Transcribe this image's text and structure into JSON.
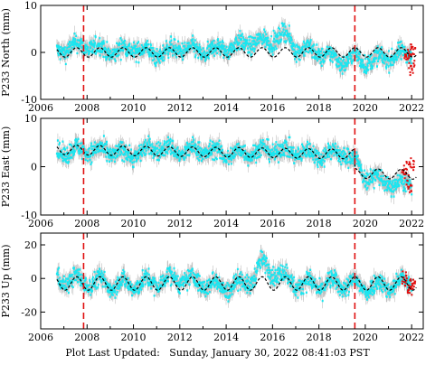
{
  "footer": {
    "label": "Plot Last Updated:",
    "timestamp": "Sunday, January 30, 2022 08:41:03 PST"
  },
  "colors": {
    "data_points": "#19e6f0",
    "error_bars": "#a9a9a9",
    "model_line": "#000000",
    "recent_points": "#e01010",
    "event_lines": "#e01010"
  },
  "chart_data": [
    {
      "type": "scatter",
      "ylabel": "P233 North (mm)",
      "xlim": [
        2006,
        2022.5
      ],
      "ylim": [
        -10,
        10
      ],
      "yticks": [
        -10,
        0,
        10
      ],
      "xticks": [
        2006,
        2008,
        2010,
        2012,
        2014,
        2016,
        2018,
        2020,
        2022
      ],
      "show_xtick_labels": true,
      "event_lines": [
        2007.85,
        2019.55
      ],
      "series": [
        {
          "role": "observations",
          "x": [
            2006.7,
            2007.2,
            2008.0,
            2009.0,
            2010.0,
            2011.0,
            2012.0,
            2013.0,
            2014.0,
            2015.0,
            2016.0,
            2016.5,
            2017.0,
            2018.0,
            2019.0,
            2019.5,
            2020.0,
            2021.0,
            2022.0
          ],
          "y": [
            0.0,
            1.0,
            1.5,
            0.0,
            1.0,
            -0.5,
            1.0,
            0.0,
            1.0,
            2.0,
            2.5,
            4.0,
            1.0,
            0.0,
            -2.0,
            -1.0,
            -2.0,
            -1.0,
            0.0
          ]
        },
        {
          "role": "model",
          "amplitude": 1.0,
          "offset": 0.0,
          "trend": 0.0,
          "steps": []
        },
        {
          "role": "recent",
          "x": [
            2021.8,
            2022.0,
            2022.05
          ],
          "y": [
            -1.0,
            -3.0,
            1.0
          ]
        }
      ]
    },
    {
      "type": "scatter",
      "ylabel": "P233 East (mm)",
      "xlim": [
        2006,
        2022.5
      ],
      "ylim": [
        -10,
        10
      ],
      "yticks": [
        -10,
        0,
        10
      ],
      "xticks": [
        2006,
        2008,
        2010,
        2012,
        2014,
        2016,
        2018,
        2020,
        2022
      ],
      "show_xtick_labels": true,
      "event_lines": [
        2007.85,
        2019.55
      ],
      "series": [
        {
          "role": "observations",
          "x": [
            2006.7,
            2008.0,
            2009.0,
            2010.0,
            2011.0,
            2012.0,
            2013.0,
            2014.0,
            2015.0,
            2016.0,
            2017.0,
            2018.0,
            2019.0,
            2019.6,
            2020.0,
            2020.5,
            2021.0,
            2021.5,
            2022.0
          ],
          "y": [
            3.0,
            3.5,
            3.0,
            2.5,
            4.0,
            3.0,
            3.5,
            2.5,
            3.0,
            3.5,
            3.0,
            2.5,
            3.0,
            1.0,
            -2.0,
            -2.5,
            -3.5,
            -4.0,
            -3.0
          ]
        },
        {
          "role": "model",
          "amplitude": 1.0,
          "offset": 3.5,
          "trend": -0.07,
          "steps": [
            [
              2019.55,
              -4.0
            ]
          ]
        },
        {
          "role": "recent",
          "x": [
            2021.7,
            2021.9,
            2022.0
          ],
          "y": [
            -1.0,
            -4.0,
            0.5
          ]
        }
      ]
    },
    {
      "type": "scatter",
      "ylabel": "P233 Up (mm)",
      "xlim": [
        2006,
        2022.5
      ],
      "ylim": [
        -30,
        27
      ],
      "yticks": [
        -20,
        0,
        20
      ],
      "xticks": [
        2006,
        2008,
        2010,
        2012,
        2014,
        2016,
        2018,
        2020,
        2022
      ],
      "show_xtick_labels": true,
      "event_lines": [
        2007.85,
        2019.55
      ],
      "series": [
        {
          "role": "observations",
          "x": [
            2006.7,
            2008.0,
            2009.0,
            2010.0,
            2011.0,
            2012.0,
            2013.0,
            2014.0,
            2015.0,
            2015.5,
            2016.0,
            2017.0,
            2018.0,
            2019.0,
            2020.0,
            2021.0,
            2022.0
          ],
          "y": [
            0.0,
            -2.0,
            -3.0,
            -4.0,
            -2.0,
            0.0,
            -3.0,
            -5.0,
            -2.0,
            8.0,
            5.0,
            -3.0,
            -4.0,
            -3.0,
            -5.0,
            -4.0,
            -2.0
          ]
        },
        {
          "role": "model",
          "amplitude": 4.0,
          "offset": -3.0,
          "trend": 0.0,
          "steps": []
        },
        {
          "role": "recent",
          "x": [
            2021.7,
            2021.95,
            2022.05
          ],
          "y": [
            0.0,
            -6.0,
            -3.0
          ]
        }
      ]
    }
  ]
}
